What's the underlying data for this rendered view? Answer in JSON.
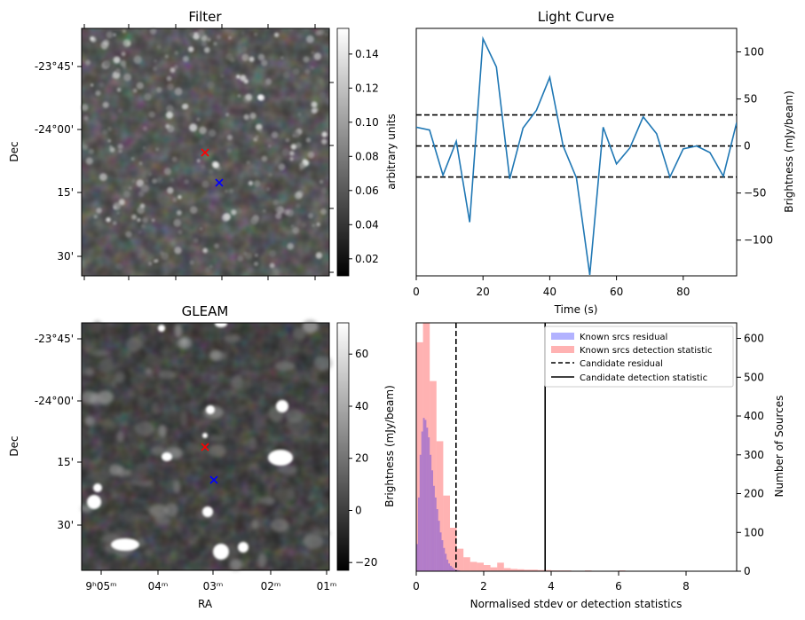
{
  "chart_data": [
    {
      "type": "heatmap",
      "title": "Filter",
      "ylabel": "Dec",
      "y_ticks": [
        "-23°45'",
        "-24°00'",
        "15'",
        "30'"
      ],
      "colorbar": {
        "label": "arbitrary units",
        "range": [
          0.01,
          0.155
        ],
        "ticks": [
          "0.02",
          "0.04",
          "0.06",
          "0.08",
          "0.10",
          "0.12",
          "0.14"
        ],
        "colormap": "gray"
      },
      "markers": [
        {
          "symbol": "x",
          "color": "#ff0000"
        },
        {
          "symbol": "x",
          "color": "#0000ff"
        }
      ]
    },
    {
      "type": "line",
      "title": "Light Curve",
      "xlabel": "Time (s)",
      "ylabel": "Brightness (mJy/beam)",
      "xlim": [
        0,
        96
      ],
      "ylim": [
        -138,
        125
      ],
      "x_ticks": [
        "0",
        "20",
        "40",
        "60",
        "80"
      ],
      "y_ticks": [
        "100",
        "50",
        "0",
        "−50",
        "−100"
      ],
      "series": [
        {
          "color": "#1f77b4",
          "x": [
            0,
            4,
            8,
            12,
            16,
            20,
            24,
            28,
            32,
            36,
            40,
            44,
            48,
            52,
            56,
            60,
            64,
            68,
            72,
            76,
            80,
            84,
            88,
            92,
            96
          ],
          "values": [
            20,
            17,
            -31,
            5,
            -81,
            114,
            84,
            -35,
            19,
            38,
            73,
            0,
            -34,
            -137,
            20,
            -19,
            -2,
            31,
            13,
            -33,
            -3,
            0,
            -7,
            -32,
            25
          ]
        }
      ],
      "hlines": [
        {
          "y": 33,
          "style": "dashed"
        },
        {
          "y": 0,
          "style": "dashed"
        },
        {
          "y": -33,
          "style": "dashed"
        }
      ]
    },
    {
      "type": "heatmap",
      "title": "GLEAM",
      "xlabel": "RA",
      "ylabel": "Dec",
      "x_ticks": [
        "9ʰ05ᵐ",
        "04ᵐ",
        "03ᵐ",
        "02ᵐ",
        "01ᵐ"
      ],
      "y_ticks": [
        "-23°45'",
        "-24°00'",
        "15'",
        "30'"
      ],
      "colorbar": {
        "label": "Brightness (mJy/beam)",
        "range": [
          -23,
          72
        ],
        "ticks": [
          "60",
          "40",
          "20",
          "0",
          "−20"
        ],
        "colormap": "gray"
      },
      "markers": [
        {
          "symbol": "x",
          "color": "#ff0000"
        },
        {
          "symbol": "x",
          "color": "#0000ff"
        }
      ]
    },
    {
      "type": "bar",
      "title": "",
      "xlabel": "Normalised stdev or detection statistics",
      "ylabel": "Number of Sources",
      "xlim": [
        0,
        9.5
      ],
      "ylim": [
        0,
        640
      ],
      "x_ticks": [
        "0",
        "2",
        "4",
        "6",
        "8"
      ],
      "y_ticks": [
        "0",
        "100",
        "200",
        "300",
        "400",
        "500",
        "600"
      ],
      "legend_placement": "top-right",
      "bin_width": 0.2,
      "series": [
        {
          "name": "Known srcs residual",
          "color": "#0000ff",
          "alpha": 0.3,
          "bin_starts": [
            0.0,
            0.05,
            0.1,
            0.15,
            0.2,
            0.25,
            0.3,
            0.35,
            0.4,
            0.45,
            0.5,
            0.55,
            0.6,
            0.65,
            0.7,
            0.75,
            0.8,
            0.85,
            0.9,
            0.95,
            1.0,
            1.05,
            1.1,
            1.15,
            1.2,
            1.25,
            1.3
          ],
          "bin_width": 0.05,
          "values": [
            70,
            190,
            300,
            360,
            395,
            390,
            370,
            345,
            300,
            260,
            220,
            190,
            160,
            130,
            100,
            80,
            60,
            45,
            30,
            20,
            14,
            10,
            6,
            4,
            3,
            2,
            1
          ]
        },
        {
          "name": "Known srcs detection statistic",
          "color": "#ff0000",
          "alpha": 0.3,
          "bin_starts": [
            0.0,
            0.2,
            0.4,
            0.6,
            0.8,
            1.0,
            1.2,
            1.4,
            1.6,
            1.8,
            2.0,
            2.2,
            2.4,
            2.6,
            2.8,
            3.0,
            3.2,
            3.4,
            3.6,
            3.8,
            4.0,
            4.2,
            4.4,
            4.6,
            4.8,
            5.0,
            6.0,
            9.0
          ],
          "values": [
            590,
            640,
            490,
            335,
            195,
            112,
            58,
            36,
            24,
            22,
            16,
            10,
            22,
            8,
            6,
            5,
            4,
            4,
            3,
            3,
            2,
            2,
            2,
            1,
            1,
            2,
            2,
            1
          ]
        }
      ],
      "vlines": [
        {
          "x": 1.18,
          "style": "dashed",
          "name": "Candidate residual"
        },
        {
          "x": 3.82,
          "style": "solid",
          "name": "Candidate detection statistic"
        }
      ]
    }
  ]
}
